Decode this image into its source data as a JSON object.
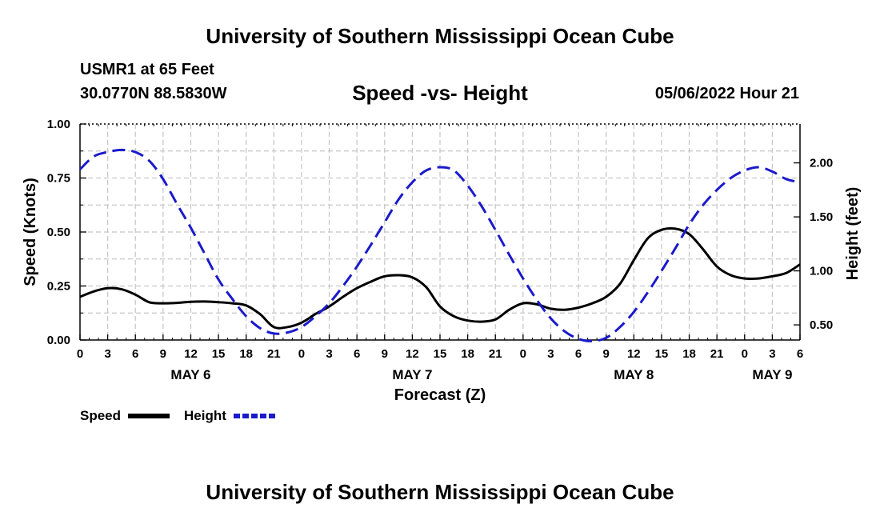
{
  "header": {
    "title": "University of Southern Mississippi Ocean Cube",
    "station": "USMR1 at 65 Feet",
    "coordinates": "30.0770N  88.5830W",
    "subtitle": "Speed -vs- Height",
    "datetime": "05/06/2022 Hour 21"
  },
  "footer": {
    "title": "University of Southern Mississippi Ocean Cube"
  },
  "chart_data": {
    "type": "line",
    "title": "Speed -vs- Height",
    "xlabel": "Forecast (Z)",
    "ylabel": "Speed (Knots)",
    "y2label": "Height (feet)",
    "xlim": [
      0,
      78
    ],
    "ylim": [
      0,
      1
    ],
    "y2lim": [
      0.36,
      2.36
    ],
    "grid": true,
    "legend_position": "bottom-left",
    "x_tick_labels": [
      "0",
      "3",
      "6",
      "9",
      "12",
      "15",
      "18",
      "21",
      "0",
      "3",
      "6",
      "9",
      "12",
      "15",
      "18",
      "21",
      "0",
      "3",
      "6",
      "9",
      "12",
      "15",
      "18",
      "21",
      "0",
      "3",
      "6"
    ],
    "day_labels": [
      {
        "x": 12,
        "label": "MAY 6"
      },
      {
        "x": 36,
        "label": "MAY 7"
      },
      {
        "x": 60,
        "label": "MAY 8"
      },
      {
        "x": 75,
        "label": "MAY 9"
      }
    ],
    "y_ticks": [
      0.0,
      0.25,
      0.5,
      0.75,
      1.0
    ],
    "y_tick_labels": [
      "0.00",
      "0.25",
      "0.50",
      "0.75",
      "1.00"
    ],
    "y2_ticks": [
      0.5,
      1.0,
      1.5,
      2.0
    ],
    "y2_tick_labels": [
      "0.50",
      "1.00",
      "1.50",
      "2.00"
    ],
    "series": [
      {
        "name": "Speed",
        "axis": "left",
        "color": "#000000",
        "dash": "solid",
        "x": [
          0,
          1.5,
          3,
          4.5,
          6,
          7.5,
          9,
          10.5,
          12,
          13.5,
          15,
          16.5,
          18,
          19.5,
          21,
          22.5,
          24,
          25.5,
          27,
          28.5,
          30,
          31.5,
          33,
          34.5,
          36,
          37.5,
          39,
          40.5,
          42,
          43.5,
          45,
          46.5,
          48,
          49.5,
          51,
          52.5,
          54,
          55.5,
          57,
          58.5,
          60,
          61.5,
          63,
          64.5,
          66,
          67.5,
          69,
          70.5,
          72,
          73.5,
          75,
          76.5,
          78
        ],
        "values": [
          0.2,
          0.225,
          0.24,
          0.235,
          0.21,
          0.175,
          0.17,
          0.172,
          0.177,
          0.178,
          0.175,
          0.17,
          0.16,
          0.12,
          0.06,
          0.06,
          0.08,
          0.12,
          0.155,
          0.2,
          0.24,
          0.27,
          0.295,
          0.3,
          0.29,
          0.245,
          0.155,
          0.11,
          0.09,
          0.085,
          0.095,
          0.14,
          0.17,
          0.165,
          0.145,
          0.14,
          0.15,
          0.17,
          0.2,
          0.26,
          0.37,
          0.47,
          0.51,
          0.515,
          0.49,
          0.42,
          0.34,
          0.3,
          0.285,
          0.285,
          0.295,
          0.31,
          0.35
        ]
      },
      {
        "name": "Height",
        "axis": "right",
        "color": "#1a1acc",
        "dash": "dashed",
        "x": [
          0,
          1.5,
          3,
          4.5,
          6,
          7.5,
          9,
          10.5,
          12,
          13.5,
          15,
          16.5,
          18,
          19.5,
          21,
          22.5,
          24,
          25.5,
          27,
          28.5,
          30,
          31.5,
          33,
          34.5,
          36,
          37.5,
          39,
          40.5,
          42,
          43.5,
          45,
          46.5,
          48,
          49.5,
          51,
          52.5,
          54,
          55.5,
          57,
          58.5,
          60,
          61.5,
          63,
          64.5,
          66,
          67.5,
          69,
          70.5,
          72,
          73.5,
          75,
          76.5,
          78
        ],
        "values": [
          1.94,
          2.06,
          2.1,
          2.12,
          2.1,
          2.02,
          1.85,
          1.62,
          1.4,
          1.16,
          0.92,
          0.74,
          0.58,
          0.47,
          0.42,
          0.43,
          0.48,
          0.58,
          0.7,
          0.86,
          1.04,
          1.24,
          1.45,
          1.66,
          1.82,
          1.93,
          1.96,
          1.93,
          1.79,
          1.6,
          1.38,
          1.15,
          0.93,
          0.73,
          0.56,
          0.44,
          0.37,
          0.35,
          0.38,
          0.48,
          0.62,
          0.8,
          1.0,
          1.21,
          1.43,
          1.61,
          1.75,
          1.86,
          1.93,
          1.96,
          1.92,
          1.85,
          1.82
        ]
      }
    ]
  }
}
